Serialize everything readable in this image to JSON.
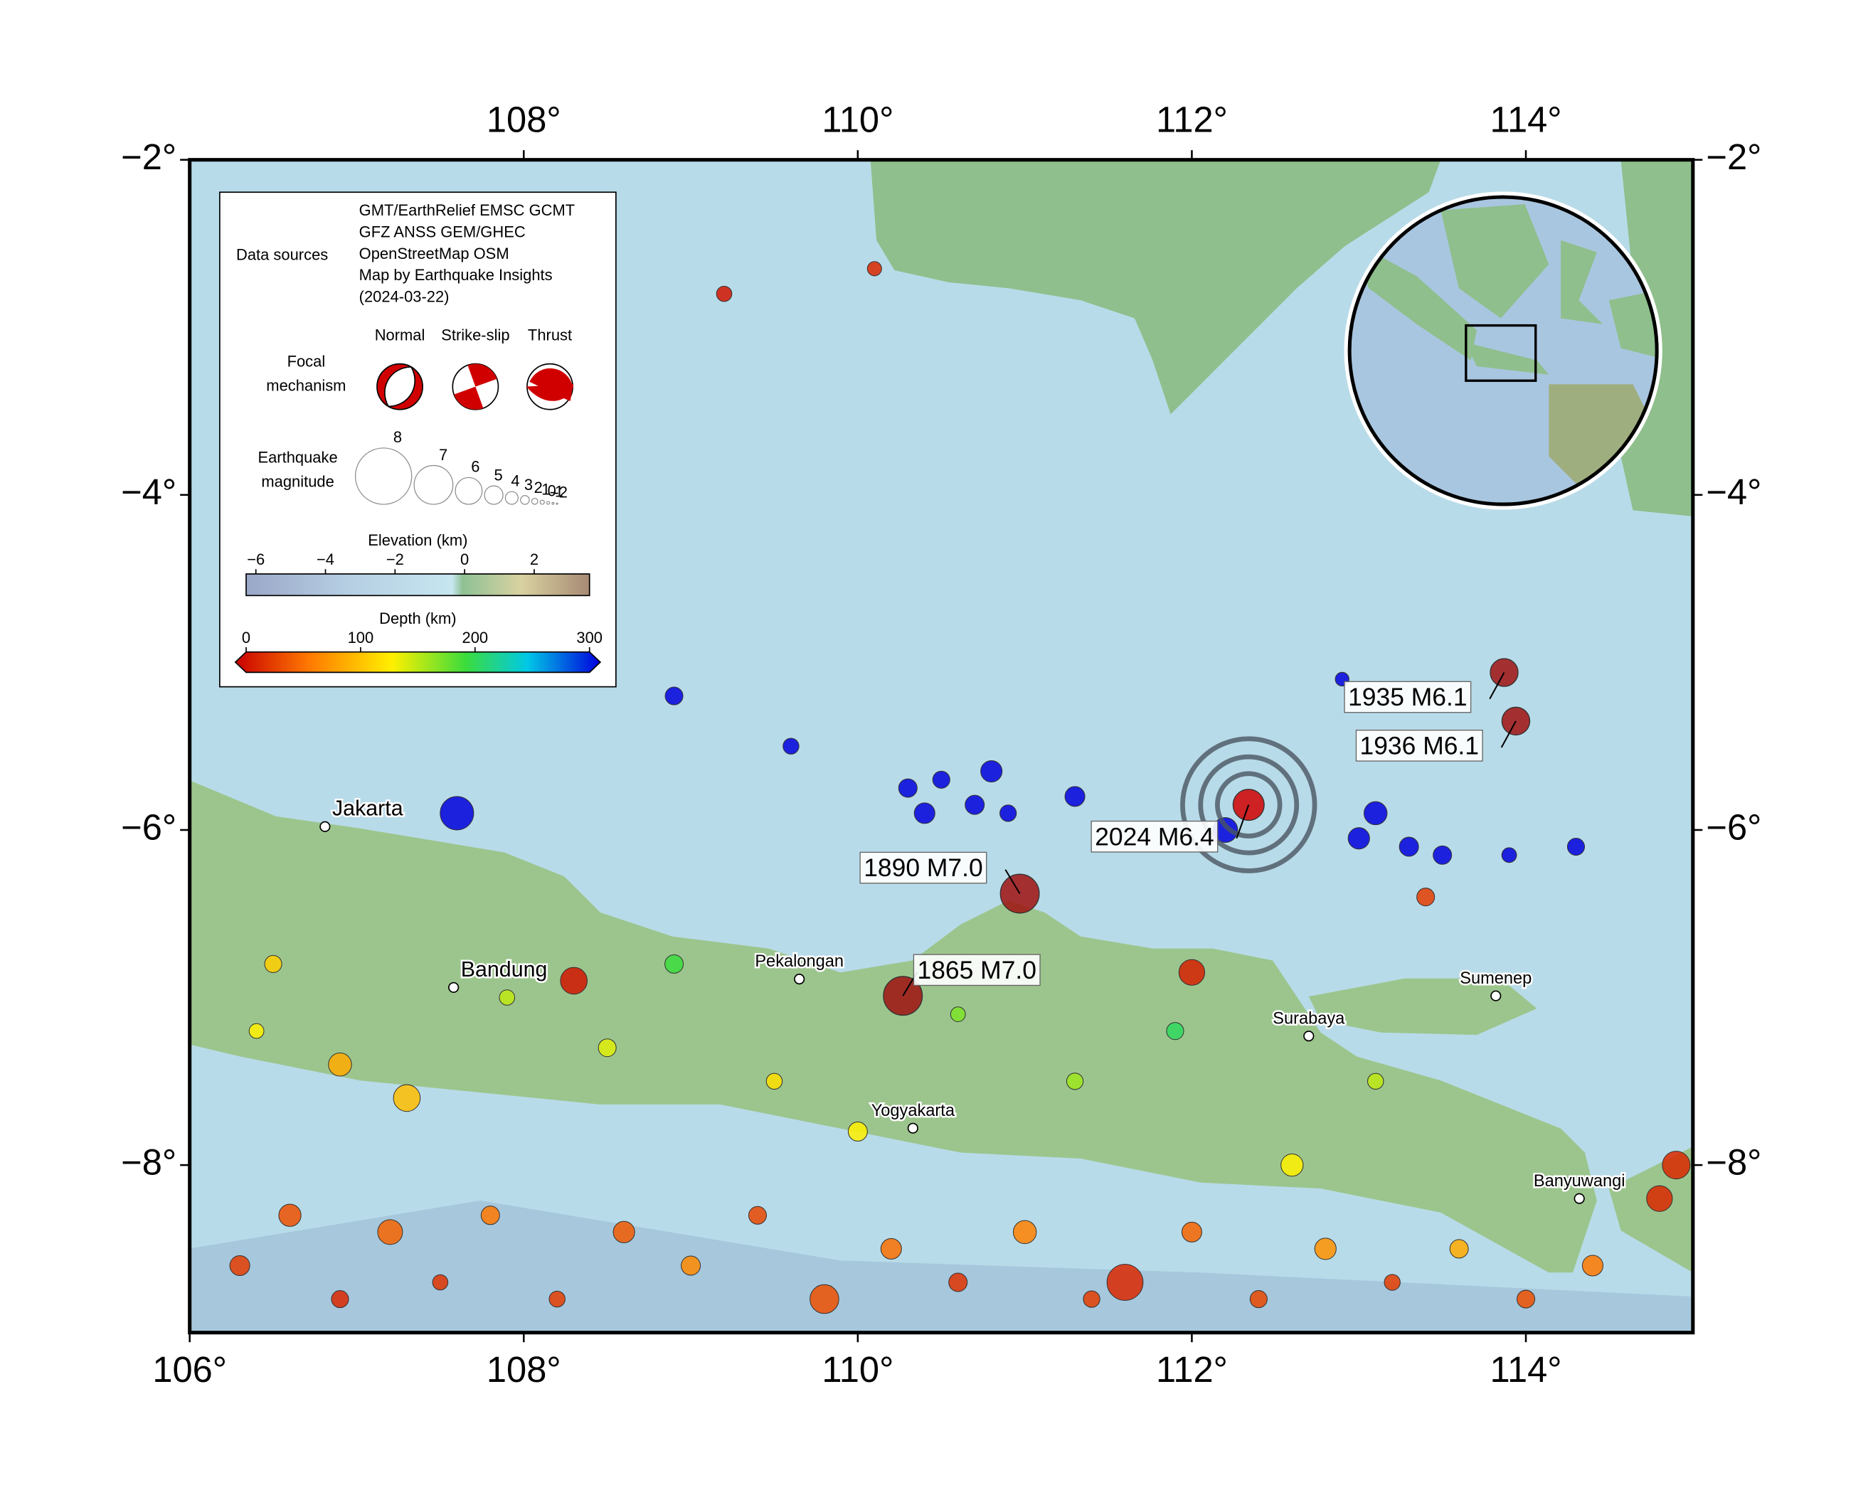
{
  "map": {
    "lonlim": [
      106,
      115
    ],
    "latlim": [
      -9,
      -2
    ],
    "lonticks_top": [
      {
        "value": 108,
        "label": "108°"
      },
      {
        "value": 110,
        "label": "110°"
      },
      {
        "value": 112,
        "label": "112°"
      },
      {
        "value": 114,
        "label": "114°"
      }
    ],
    "lonticks_bottom": [
      {
        "value": 106,
        "label": "106°"
      },
      {
        "value": 108,
        "label": "108°"
      },
      {
        "value": 110,
        "label": "110°"
      },
      {
        "value": 112,
        "label": "112°"
      },
      {
        "value": 114,
        "label": "114°"
      }
    ],
    "latticks": [
      {
        "value": -2,
        "label": "−2°"
      },
      {
        "value": -4,
        "label": "−4°"
      },
      {
        "value": -6,
        "label": "−6°"
      },
      {
        "value": -8,
        "label": "−8°"
      }
    ],
    "places": [
      {
        "name": "Jakarta",
        "lon": 106.81,
        "lat": -5.98,
        "size": "large"
      },
      {
        "name": "Bandung",
        "lon": 107.58,
        "lat": -6.94,
        "size": "large"
      },
      {
        "name": "Pekalongan",
        "lon": 109.65,
        "lat": -6.89,
        "size": "small"
      },
      {
        "name": "Yogyakarta",
        "lon": 110.33,
        "lat": -7.78,
        "size": "small"
      },
      {
        "name": "Surabaya",
        "lon": 112.7,
        "lat": -7.23,
        "size": "small"
      },
      {
        "name": "Sumenep",
        "lon": 113.82,
        "lat": -6.99,
        "size": "small"
      },
      {
        "name": "Banyuwangi",
        "lon": 114.32,
        "lat": -8.2,
        "size": "small"
      }
    ],
    "events": [
      {
        "label": "1935 M6.1",
        "lon": 113.87,
        "lat": -5.06,
        "mag": 6.1
      },
      {
        "label": "1936 M6.1",
        "lon": 113.94,
        "lat": -5.35,
        "mag": 6.1
      },
      {
        "label": "1890 M7.0",
        "lon": 110.97,
        "lat": -6.38,
        "mag": 7.0
      },
      {
        "label": "1865 M7.0",
        "lon": 110.27,
        "lat": -6.99,
        "mag": 7.0
      },
      {
        "label": "2024 M6.4",
        "lon": 112.34,
        "lat": -5.85,
        "mag": 6.4
      }
    ],
    "earthquakes": [
      {
        "lon": 106.3,
        "lat": -8.6,
        "depth": 30,
        "mag": 5.2
      },
      {
        "lon": 106.6,
        "lat": -8.3,
        "depth": 40,
        "mag": 5.5
      },
      {
        "lon": 106.9,
        "lat": -8.8,
        "depth": 20,
        "mag": 4.8
      },
      {
        "lon": 107.2,
        "lat": -8.4,
        "depth": 50,
        "mag": 5.8
      },
      {
        "lon": 107.5,
        "lat": -8.7,
        "depth": 25,
        "mag": 4.5
      },
      {
        "lon": 107.8,
        "lat": -8.3,
        "depth": 60,
        "mag": 5.0
      },
      {
        "lon": 108.2,
        "lat": -8.8,
        "depth": 30,
        "mag": 4.6
      },
      {
        "lon": 108.6,
        "lat": -8.4,
        "depth": 45,
        "mag": 5.4
      },
      {
        "lon": 109.0,
        "lat": -8.6,
        "depth": 70,
        "mag": 5.1
      },
      {
        "lon": 109.4,
        "lat": -8.3,
        "depth": 35,
        "mag": 4.9
      },
      {
        "lon": 109.8,
        "lat": -8.8,
        "depth": 40,
        "mag": 6.2
      },
      {
        "lon": 110.2,
        "lat": -8.5,
        "depth": 55,
        "mag": 5.3
      },
      {
        "lon": 110.6,
        "lat": -8.7,
        "depth": 25,
        "mag": 5.0
      },
      {
        "lon": 111.0,
        "lat": -8.4,
        "depth": 65,
        "mag": 5.6
      },
      {
        "lon": 111.4,
        "lat": -8.8,
        "depth": 30,
        "mag": 4.7
      },
      {
        "lon": 111.6,
        "lat": -8.7,
        "depth": 20,
        "mag": 6.8
      },
      {
        "lon": 112.0,
        "lat": -8.4,
        "depth": 50,
        "mag": 5.2
      },
      {
        "lon": 112.4,
        "lat": -8.8,
        "depth": 35,
        "mag": 4.8
      },
      {
        "lon": 112.8,
        "lat": -8.5,
        "depth": 75,
        "mag": 5.4
      },
      {
        "lon": 113.2,
        "lat": -8.7,
        "depth": 30,
        "mag": 4.6
      },
      {
        "lon": 113.6,
        "lat": -8.5,
        "depth": 90,
        "mag": 5.0
      },
      {
        "lon": 114.0,
        "lat": -8.8,
        "depth": 40,
        "mag": 4.9
      },
      {
        "lon": 114.4,
        "lat": -8.6,
        "depth": 60,
        "mag": 5.3
      },
      {
        "lon": 114.8,
        "lat": -8.2,
        "depth": 20,
        "mag": 5.9
      },
      {
        "lon": 106.5,
        "lat": -6.8,
        "depth": 110,
        "mag": 4.8
      },
      {
        "lon": 106.9,
        "lat": -7.4,
        "depth": 90,
        "mag": 5.6
      },
      {
        "lon": 107.3,
        "lat": -7.6,
        "depth": 100,
        "mag": 6.0
      },
      {
        "lon": 107.9,
        "lat": -7.0,
        "depth": 150,
        "mag": 4.5
      },
      {
        "lon": 108.5,
        "lat": -7.3,
        "depth": 140,
        "mag": 4.9
      },
      {
        "lon": 108.9,
        "lat": -6.8,
        "depth": 190,
        "mag": 5.0
      },
      {
        "lon": 109.5,
        "lat": -7.5,
        "depth": 120,
        "mag": 4.6
      },
      {
        "lon": 110.0,
        "lat": -7.8,
        "depth": 130,
        "mag": 5.1
      },
      {
        "lon": 110.6,
        "lat": -7.1,
        "depth": 170,
        "mag": 4.4
      },
      {
        "lon": 111.3,
        "lat": -7.5,
        "depth": 160,
        "mag": 4.7
      },
      {
        "lon": 111.9,
        "lat": -7.2,
        "depth": 200,
        "mag": 4.8
      },
      {
        "lon": 112.6,
        "lat": -8.0,
        "depth": 130,
        "mag": 5.5
      },
      {
        "lon": 113.1,
        "lat": -7.5,
        "depth": 150,
        "mag": 4.6
      },
      {
        "lon": 106.4,
        "lat": -7.2,
        "depth": 130,
        "mag": 4.4
      },
      {
        "lon": 110.3,
        "lat": -5.75,
        "depth": 550,
        "mag": 5.0
      },
      {
        "lon": 110.4,
        "lat": -5.9,
        "depth": 560,
        "mag": 5.3
      },
      {
        "lon": 110.5,
        "lat": -5.7,
        "depth": 540,
        "mag": 4.8
      },
      {
        "lon": 110.7,
        "lat": -5.85,
        "depth": 580,
        "mag": 5.1
      },
      {
        "lon": 110.8,
        "lat": -5.65,
        "depth": 570,
        "mag": 5.4
      },
      {
        "lon": 110.9,
        "lat": -5.9,
        "depth": 590,
        "mag": 4.7
      },
      {
        "lon": 111.3,
        "lat": -5.8,
        "depth": 600,
        "mag": 5.2
      },
      {
        "lon": 112.2,
        "lat": -6.0,
        "depth": 620,
        "mag": 5.8
      },
      {
        "lon": 113.0,
        "lat": -6.05,
        "depth": 610,
        "mag": 5.4
      },
      {
        "lon": 113.1,
        "lat": -5.9,
        "depth": 600,
        "mag": 5.6
      },
      {
        "lon": 113.3,
        "lat": -6.1,
        "depth": 590,
        "mag": 5.1
      },
      {
        "lon": 113.5,
        "lat": -6.15,
        "depth": 620,
        "mag": 5.0
      },
      {
        "lon": 113.9,
        "lat": -6.15,
        "depth": 580,
        "mag": 4.4
      },
      {
        "lon": 114.3,
        "lat": -6.1,
        "depth": 600,
        "mag": 4.8
      },
      {
        "lon": 107.6,
        "lat": -5.9,
        "depth": 560,
        "mag": 6.6
      },
      {
        "lon": 108.9,
        "lat": -5.2,
        "depth": 600,
        "mag": 4.9
      },
      {
        "lon": 109.6,
        "lat": -5.5,
        "depth": 580,
        "mag": 4.6
      },
      {
        "lon": 112.9,
        "lat": -5.1,
        "depth": 590,
        "mag": 4.2
      },
      {
        "lon": 109.2,
        "lat": -2.8,
        "depth": 10,
        "mag": 4.5
      },
      {
        "lon": 110.1,
        "lat": -2.65,
        "depth": 20,
        "mag": 4.3
      },
      {
        "lon": 113.4,
        "lat": -6.4,
        "depth": 30,
        "mag": 4.9
      },
      {
        "lon": 112.0,
        "lat": -6.85,
        "depth": 15,
        "mag": 5.9
      },
      {
        "lon": 108.3,
        "lat": -6.9,
        "depth": 10,
        "mag": 6.0
      },
      {
        "lon": 114.9,
        "lat": -8.0,
        "depth": 20,
        "mag": 6.1
      }
    ],
    "legend": {
      "sources_title": "Data sources",
      "sources": [
        "GMT/EarthRelief EMSC GCMT",
        "GFZ ANSS GEM/GHEC",
        "OpenStreetMap OSM",
        "Map by Earthquake Insights",
        "(2024-03-22)"
      ],
      "focal_title": [
        "Focal",
        "mechanism"
      ],
      "focal_types": [
        "Normal",
        "Strike-slip",
        "Thrust"
      ],
      "magnitude_title": [
        "Earthquake",
        "magnitude"
      ],
      "magnitudes": [
        8,
        7,
        6,
        5,
        4,
        3,
        2,
        1,
        0,
        -1,
        -2
      ],
      "elevation_title": "Elevation (km)",
      "elevation_lim": [
        -6.28,
        3.59
      ],
      "elevation_ticks": [
        {
          "value": -6,
          "label": "−6"
        },
        {
          "value": -4,
          "label": "−4"
        },
        {
          "value": -2,
          "label": "−2"
        },
        0,
        2
      ],
      "depth_title": "Depth (km)",
      "depth_lim": [
        0,
        300
      ],
      "depth_ticks": [
        0,
        100,
        200,
        300
      ]
    }
  }
}
